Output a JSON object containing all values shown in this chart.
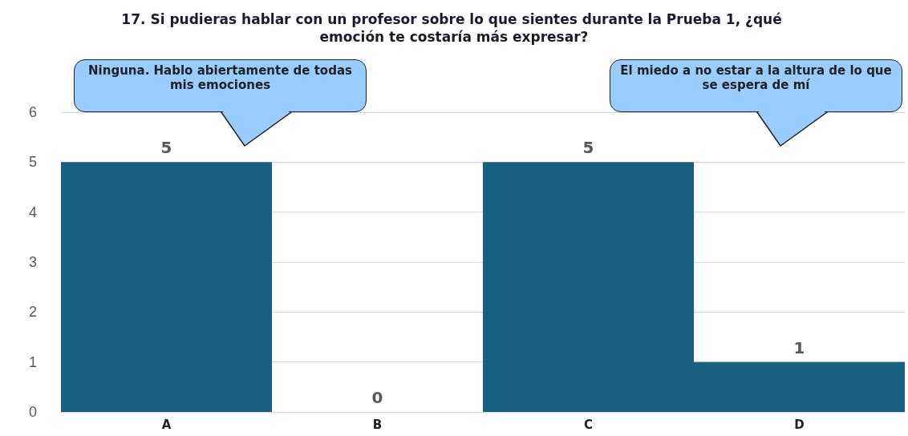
{
  "chart_data": {
    "type": "bar",
    "title": "17. Si pudieras hablar con un profesor sobre lo que sientes durante la Prueba 1, ¿qué emoción te costaría más expresar?",
    "categories": [
      "A",
      "B",
      "C",
      "D"
    ],
    "values": [
      5,
      0,
      5,
      1
    ],
    "color": "#17607f",
    "ylim": [
      0,
      6
    ],
    "yticks": [
      0,
      1,
      2,
      3,
      4,
      5,
      6
    ],
    "grid": "y",
    "data_labels": true,
    "annotations": [
      "Ninguna. Hablo abiertamente de todas mis emociones",
      "El miedo a no estar a la altura de lo que se espera de mí"
    ]
  }
}
